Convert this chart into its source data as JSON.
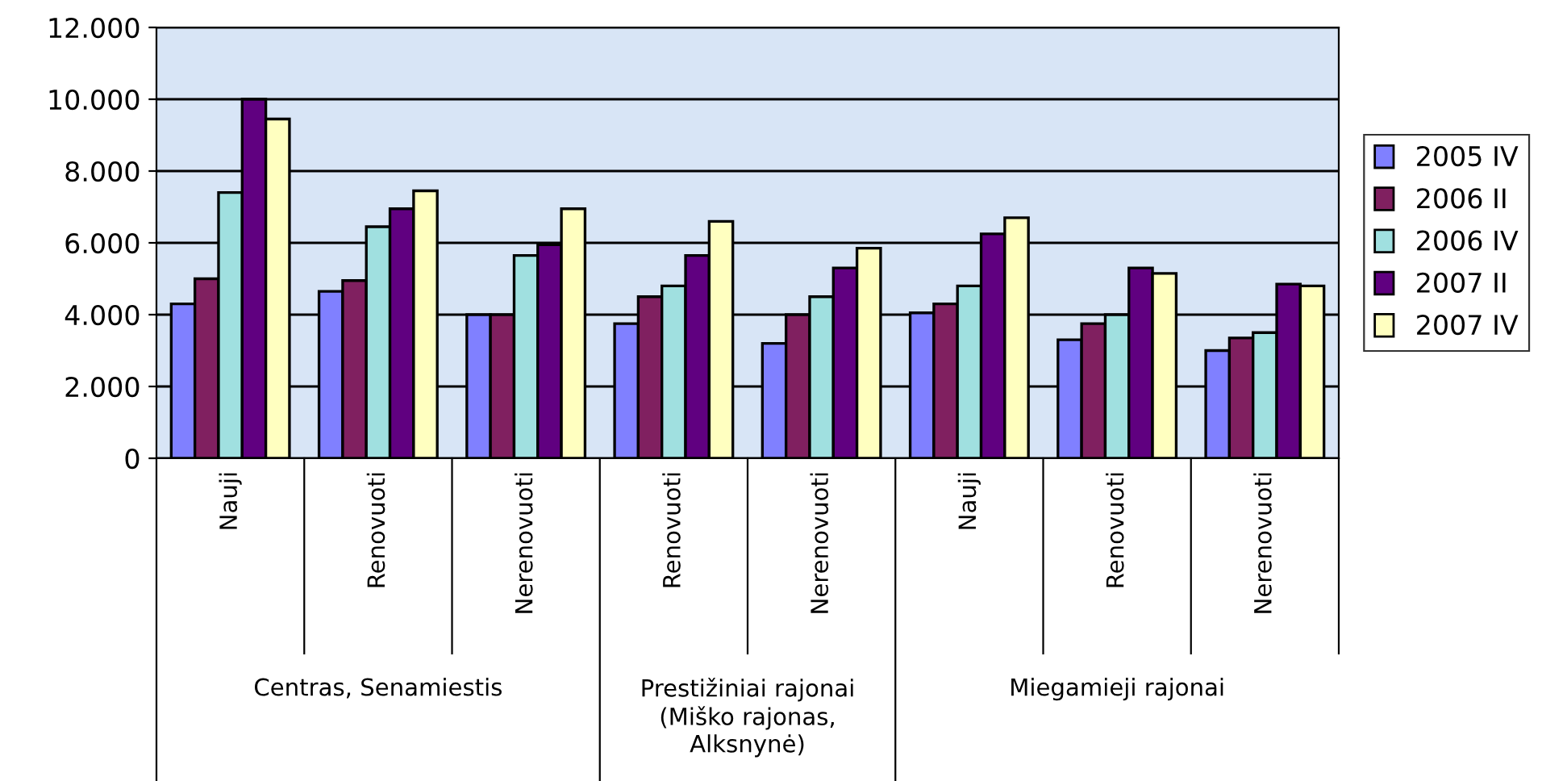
{
  "chart_data": {
    "type": "bar",
    "categories": [
      "Nauji",
      "Renovuoti",
      "Nerenovuoti",
      "Renovuoti",
      "Nerenovuoti",
      "Nauji",
      "Renovuoti",
      "Nerenovuoti"
    ],
    "series": [
      {
        "name": "2005 IV",
        "color": "#8080ff",
        "values": [
          4300,
          4650,
          4000,
          3750,
          3200,
          4050,
          3300,
          3000
        ]
      },
      {
        "name": "2006 II",
        "color": "#802060",
        "values": [
          5000,
          4950,
          4000,
          4500,
          4000,
          4300,
          3750,
          3350
        ]
      },
      {
        "name": "2006 IV",
        "color": "#a0e0e0",
        "values": [
          7400,
          6450,
          5650,
          4800,
          4500,
          4800,
          4000,
          3500
        ]
      },
      {
        "name": "2007 II",
        "color": "#600080",
        "values": [
          10000,
          6950,
          5950,
          5650,
          5300,
          6250,
          5300,
          4850
        ]
      },
      {
        "name": "2007 IV",
        "color": "#ffffc0",
        "values": [
          9450,
          7450,
          6950,
          6600,
          5850,
          6700,
          5150,
          4800
        ]
      }
    ],
    "annotations": [
      "Centras, Senamiestis",
      "Prestižiniai rajonai\n(Miško rajonas,\nAlksnynė)",
      "Miegamieji rajonai"
    ],
    "ylim": [
      0,
      12000
    ],
    "yticks": [
      0,
      {
        "value": 2000,
        "label": "2.000"
      },
      {
        "value": 4000,
        "label": "4.000"
      },
      {
        "value": 6000,
        "label": "6.000"
      },
      {
        "value": 8000,
        "label": "8.000"
      },
      {
        "value": 10000,
        "label": "10.000"
      },
      {
        "value": 12000,
        "label": "12.000"
      }
    ],
    "grid": "y",
    "legend": "right"
  }
}
